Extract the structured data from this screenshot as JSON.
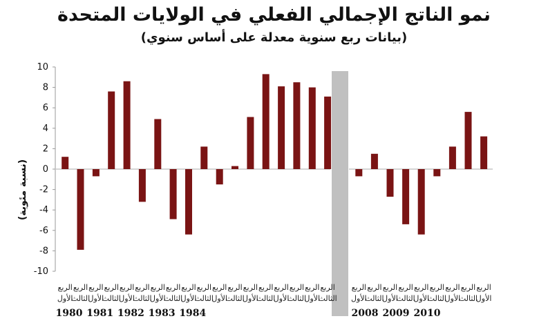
{
  "chart_data": {
    "type": "bar",
    "title": "نمو الناتج الإجمالي الفعلي في الولايات المتحدة",
    "subtitle": "(بيانات ربع سنوية معدلة على أساس سنوي)",
    "ylabel": "(نسبة مئوية)",
    "ylim": [
      -10,
      10
    ],
    "yticks": [
      10,
      8,
      6,
      4,
      2,
      0,
      -2,
      -4,
      -6,
      -8,
      -10
    ],
    "bar_color": "#7a1414",
    "divider_color": "#c0c0c0",
    "quarter_labels": {
      "q1": [
        "الربع",
        "الأول"
      ],
      "q3": [
        "الربع",
        "الثالث"
      ]
    },
    "segments": [
      {
        "values": [
          1.2,
          -7.9,
          -0.7,
          7.6,
          8.6,
          -3.2,
          4.9,
          -4.9,
          -6.4,
          2.2,
          -1.5,
          0.3,
          5.1,
          9.3,
          8.1,
          8.5,
          8.0,
          7.1
        ],
        "years": [
          "1980",
          "1981",
          "1982",
          "1983",
          "1984"
        ]
      },
      {
        "values": [
          -0.7,
          1.5,
          -2.7,
          -5.4,
          -6.4,
          -0.7,
          2.2,
          5.6,
          3.2
        ],
        "years": [
          "2008",
          "2009",
          "2010"
        ]
      }
    ]
  }
}
